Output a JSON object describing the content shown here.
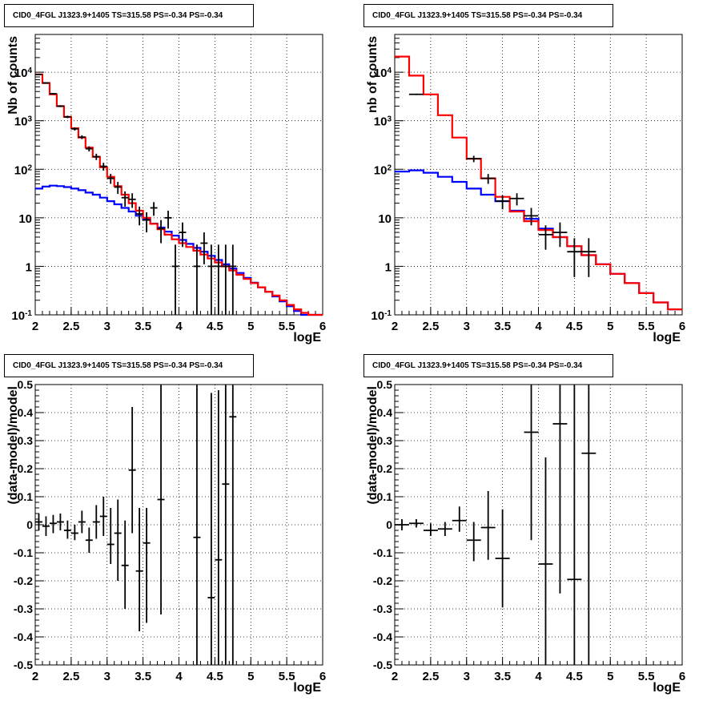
{
  "colors": {
    "data": "#000000",
    "total_model": "#ff0000",
    "background_model": "#0000ff",
    "grid": "#000000"
  },
  "chart_data": [
    {
      "type": "line",
      "title": "CID0_4FGL J1323.9+1405 TS=315.58 PS=-0.34 PS=-0.34",
      "xlabel": "logE",
      "ylabel": "Nb of counts",
      "xlim": [
        2,
        6
      ],
      "ylim": [
        0.1,
        60000
      ],
      "log_y": true,
      "grid": true,
      "x_ticks": [
        "2",
        "2.5",
        "3",
        "3.5",
        "4",
        "4.5",
        "5",
        "5.5",
        "6"
      ],
      "y_ticks": [
        "10^-1",
        "1",
        "10",
        "10^2",
        "10^3",
        "10^4"
      ],
      "bin_edges": [
        2.0,
        2.1,
        2.2,
        2.3,
        2.4,
        2.5,
        2.6,
        2.7,
        2.8,
        2.9,
        3.0,
        3.1,
        3.2,
        3.3,
        3.4,
        3.5,
        3.6,
        3.7,
        3.8,
        3.9,
        4.0,
        4.1,
        4.2,
        4.3,
        4.4,
        4.5,
        4.6,
        4.7,
        4.8,
        4.9,
        5.0,
        5.1,
        5.2,
        5.3,
        5.4,
        5.5,
        5.6,
        5.7,
        5.8,
        5.9,
        6.0
      ],
      "series": [
        {
          "role": "total_model",
          "values": [
            9000,
            6000,
            3500,
            2000,
            1200,
            700,
            450,
            280,
            180,
            110,
            70,
            45,
            30,
            20,
            14,
            10,
            7.5,
            5.8,
            4.5,
            3.6,
            3.0,
            2.5,
            2.1,
            1.75,
            1.45,
            1.2,
            1.0,
            0.82,
            0.67,
            0.55,
            0.45,
            0.37,
            0.3,
            0.25,
            0.2,
            0.16,
            0.13,
            0.11,
            0.1,
            0.1
          ]
        },
        {
          "role": "background_model",
          "values": [
            40,
            44,
            46,
            45,
            43,
            40,
            37,
            33,
            30,
            26,
            22,
            19,
            16,
            13.5,
            11,
            9.2,
            7.6,
            6.3,
            5.2,
            4.3,
            3.5,
            2.9,
            2.4,
            2.0,
            1.65,
            1.35,
            1.1,
            0.9,
            0.73,
            0.58,
            0.46,
            0.37,
            0.3,
            0.24,
            0.19,
            0.15,
            0.12,
            0.1,
            0.1,
            0.1
          ]
        },
        {
          "role": "data",
          "points": [
            {
              "x": 2.05,
              "y": 9000,
              "lo": 8800,
              "hi": 9200
            },
            {
              "x": 2.15,
              "y": 6000,
              "lo": 5850,
              "hi": 6150
            },
            {
              "x": 2.25,
              "y": 3600,
              "lo": 3480,
              "hi": 3720
            },
            {
              "x": 2.35,
              "y": 2000,
              "lo": 1910,
              "hi": 2090
            },
            {
              "x": 2.45,
              "y": 1200,
              "lo": 1130,
              "hi": 1270
            },
            {
              "x": 2.55,
              "y": 680,
              "lo": 628,
              "hi": 732
            },
            {
              "x": 2.65,
              "y": 460,
              "lo": 418,
              "hi": 502
            },
            {
              "x": 2.75,
              "y": 265,
              "lo": 233,
              "hi": 297
            },
            {
              "x": 2.85,
              "y": 182,
              "lo": 155,
              "hi": 209
            },
            {
              "x": 2.95,
              "y": 115,
              "lo": 94,
              "hi": 136
            },
            {
              "x": 3.05,
              "y": 65,
              "lo": 50,
              "hi": 80
            },
            {
              "x": 3.15,
              "y": 43,
              "lo": 31,
              "hi": 55
            },
            {
              "x": 3.25,
              "y": 26,
              "lo": 17,
              "hi": 35
            },
            {
              "x": 3.35,
              "y": 24,
              "lo": 16,
              "hi": 32
            },
            {
              "x": 3.45,
              "y": 12,
              "lo": 7,
              "hi": 17
            },
            {
              "x": 3.55,
              "y": 9,
              "lo": 5,
              "hi": 13
            },
            {
              "x": 3.65,
              "y": 16,
              "lo": 11,
              "hi": 21
            },
            {
              "x": 3.75,
              "y": 6,
              "lo": 3,
              "hi": 9
            },
            {
              "x": 3.85,
              "y": 10,
              "lo": 6,
              "hi": 14
            },
            {
              "x": 3.95,
              "y": 1,
              "lo": 0.1,
              "hi": 2.8
            },
            {
              "x": 4.05,
              "y": 5,
              "lo": 2.5,
              "hi": 8
            },
            {
              "x": 4.25,
              "y": 1,
              "lo": 0.1,
              "hi": 2.8
            },
            {
              "x": 4.35,
              "y": 3,
              "lo": 1.1,
              "hi": 5
            },
            {
              "x": 4.45,
              "y": 1,
              "lo": 0.1,
              "hi": 2.8
            },
            {
              "x": 4.55,
              "y": 1,
              "lo": 0.1,
              "hi": 2.8
            },
            {
              "x": 4.65,
              "y": 1,
              "lo": 0.1,
              "hi": 2.8
            },
            {
              "x": 4.75,
              "y": 1,
              "lo": 0.1,
              "hi": 2.8
            }
          ]
        }
      ]
    },
    {
      "type": "line",
      "title": "CID0_4FGL J1323.9+1405 TS=315.58 PS=-0.34 PS=-0.34",
      "xlabel": "logE",
      "ylabel": "nb of counts",
      "xlim": [
        2,
        6
      ],
      "ylim": [
        0.1,
        60000
      ],
      "log_y": true,
      "grid": true,
      "x_ticks": [
        "2",
        "2.5",
        "3",
        "3.5",
        "4",
        "4.5",
        "5",
        "5.5",
        "6"
      ],
      "y_ticks": [
        "10^-1",
        "1",
        "10",
        "10^2",
        "10^3",
        "10^4"
      ],
      "bin_edges": [
        2.0,
        2.2,
        2.4,
        2.6,
        2.8,
        3.0,
        3.2,
        3.4,
        3.6,
        3.8,
        4.0,
        4.2,
        4.4,
        4.6,
        4.8,
        5.0,
        5.2,
        5.4,
        5.6,
        5.8,
        6.0
      ],
      "series": [
        {
          "role": "total_model",
          "values": [
            21000,
            8500,
            3500,
            1300,
            450,
            165,
            65,
            27,
            13.5,
            8.5,
            5.6,
            4.0,
            2.6,
            1.7,
            1.1,
            0.7,
            0.45,
            0.28,
            0.18,
            0.13
          ]
        },
        {
          "role": "background_model",
          "values": [
            90,
            95,
            85,
            70,
            55,
            40,
            30,
            22,
            14,
            9.5,
            6.0,
            4.0,
            2.6,
            1.7,
            1.1,
            0.7,
            0.45,
            0.28,
            0.18,
            0.13
          ]
        },
        {
          "role": "data",
          "points": [
            {
              "x": 2.3,
              "y": 3500,
              "lo": 3380,
              "hi": 3620
            },
            {
              "x": 3.1,
              "y": 165,
              "lo": 140,
              "hi": 190
            },
            {
              "x": 3.3,
              "y": 65,
              "lo": 50,
              "hi": 80
            },
            {
              "x": 3.5,
              "y": 22,
              "lo": 15,
              "hi": 29
            },
            {
              "x": 3.7,
              "y": 25,
              "lo": 18,
              "hi": 32
            },
            {
              "x": 3.9,
              "y": 11,
              "lo": 7,
              "hi": 16
            },
            {
              "x": 4.1,
              "y": 4.5,
              "lo": 2.2,
              "hi": 7
            },
            {
              "x": 4.3,
              "y": 5,
              "lo": 2.5,
              "hi": 8
            },
            {
              "x": 4.5,
              "y": 2,
              "lo": 0.6,
              "hi": 3.8
            },
            {
              "x": 4.7,
              "y": 2,
              "lo": 0.6,
              "hi": 3.8
            }
          ]
        }
      ]
    },
    {
      "type": "scatter",
      "title": "CID0_4FGL J1323.9+1405 TS=315.58 PS=-0.34 PS=-0.34",
      "xlabel": "logE",
      "ylabel": "(data-model)/model",
      "xlim": [
        2,
        6
      ],
      "ylim": [
        -0.5,
        0.5
      ],
      "grid": true,
      "x_ticks": [
        "2",
        "2.5",
        "3",
        "3.5",
        "4",
        "4.5",
        "5",
        "5.5",
        "6"
      ],
      "y_ticks": [
        "-0.5",
        "-0.4",
        "-0.3",
        "-0.2",
        "-0.1",
        "0",
        "0.1",
        "0.2",
        "0.3",
        "0.4",
        "0.5"
      ],
      "half_width": 0.05,
      "points": [
        {
          "x": 2.05,
          "y": 0.01,
          "lo": -0.02,
          "hi": 0.04
        },
        {
          "x": 2.15,
          "y": -0.005,
          "lo": -0.04,
          "hi": 0.03
        },
        {
          "x": 2.25,
          "y": 0.005,
          "lo": -0.03,
          "hi": 0.035
        },
        {
          "x": 2.35,
          "y": 0.01,
          "lo": -0.02,
          "hi": 0.04
        },
        {
          "x": 2.45,
          "y": -0.02,
          "lo": -0.05,
          "hi": 0.015
        },
        {
          "x": 2.55,
          "y": -0.03,
          "lo": -0.055,
          "hi": 0.0
        },
        {
          "x": 2.65,
          "y": 0.01,
          "lo": -0.03,
          "hi": 0.05
        },
        {
          "x": 2.75,
          "y": -0.055,
          "lo": -0.1,
          "hi": -0.01
        },
        {
          "x": 2.85,
          "y": 0.01,
          "lo": -0.05,
          "hi": 0.07
        },
        {
          "x": 2.95,
          "y": 0.03,
          "lo": -0.04,
          "hi": 0.1
        },
        {
          "x": 3.05,
          "y": -0.07,
          "lo": -0.14,
          "hi": 0.06
        },
        {
          "x": 3.15,
          "y": -0.03,
          "lo": -0.2,
          "hi": 0.09
        },
        {
          "x": 3.25,
          "y": -0.145,
          "lo": -0.3,
          "hi": 0.015
        },
        {
          "x": 3.35,
          "y": 0.195,
          "lo": -0.03,
          "hi": 0.42
        },
        {
          "x": 3.45,
          "y": -0.165,
          "lo": -0.38,
          "hi": 0.06
        },
        {
          "x": 3.55,
          "y": -0.065,
          "lo": -0.35,
          "hi": 0.06
        },
        {
          "x": 3.75,
          "y": 0.09,
          "lo": -0.32,
          "hi": 0.5
        },
        {
          "x": 4.25,
          "y": -0.045,
          "lo": -0.5,
          "hi": 0.5
        },
        {
          "x": 4.45,
          "y": -0.26,
          "lo": -0.5,
          "hi": 0.47
        },
        {
          "x": 4.55,
          "y": -0.125,
          "lo": -0.5,
          "hi": 0.48
        },
        {
          "x": 4.65,
          "y": 0.145,
          "lo": -0.5,
          "hi": 0.5
        },
        {
          "x": 4.75,
          "y": 0.385,
          "lo": -0.5,
          "hi": 0.5
        }
      ]
    },
    {
      "type": "scatter",
      "title": "CID0_4FGL J1323.9+1405 TS=315.58 PS=-0.34 PS=-0.34",
      "xlabel": "logE",
      "ylabel": "(data-model)/model",
      "xlim": [
        2,
        6
      ],
      "ylim": [
        -0.5,
        0.5
      ],
      "grid": true,
      "x_ticks": [
        "2",
        "2.5",
        "3",
        "3.5",
        "4",
        "4.5",
        "5",
        "5.5",
        "6"
      ],
      "y_ticks": [
        "-0.5",
        "-0.4",
        "-0.3",
        "-0.2",
        "-0.1",
        "0",
        "0.1",
        "0.2",
        "0.3",
        "0.4",
        "0.5"
      ],
      "half_width": 0.1,
      "points": [
        {
          "x": 2.1,
          "y": 0.0,
          "lo": -0.02,
          "hi": 0.02
        },
        {
          "x": 2.3,
          "y": 0.005,
          "lo": -0.01,
          "hi": 0.02
        },
        {
          "x": 2.5,
          "y": -0.02,
          "lo": -0.04,
          "hi": 0.005
        },
        {
          "x": 2.7,
          "y": -0.015,
          "lo": -0.04,
          "hi": 0.01
        },
        {
          "x": 2.9,
          "y": 0.015,
          "lo": -0.025,
          "hi": 0.065
        },
        {
          "x": 3.1,
          "y": -0.055,
          "lo": -0.13,
          "hi": 0.01
        },
        {
          "x": 3.3,
          "y": -0.01,
          "lo": -0.125,
          "hi": 0.12
        },
        {
          "x": 3.5,
          "y": -0.12,
          "lo": -0.295,
          "hi": 0.055
        },
        {
          "x": 3.9,
          "y": 0.33,
          "lo": -0.055,
          "hi": 0.5
        },
        {
          "x": 4.1,
          "y": -0.14,
          "lo": -0.5,
          "hi": 0.24
        },
        {
          "x": 4.3,
          "y": 0.36,
          "lo": -0.245,
          "hi": 0.5
        },
        {
          "x": 4.5,
          "y": -0.195,
          "lo": -0.5,
          "hi": 0.5
        },
        {
          "x": 4.7,
          "y": 0.255,
          "lo": -0.5,
          "hi": 0.5
        }
      ]
    }
  ]
}
